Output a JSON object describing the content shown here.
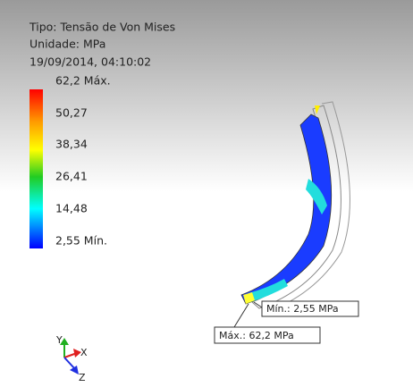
{
  "header": {
    "type": "Tipo: Tensão de Von Mises",
    "unit": "Unidade: MPa",
    "date": "19/09/2014, 04:10:02"
  },
  "legend": {
    "labels": [
      "62,2 Máx.",
      "50,27",
      "38,34",
      "26,41",
      "14,48",
      "2,55 Mín."
    ]
  },
  "callouts": {
    "min": "Mín.: 2,55 MPa",
    "max": "Máx.: 62,2 MPa"
  },
  "triad": {
    "y": "Y",
    "x": "X",
    "z": "Z"
  }
}
